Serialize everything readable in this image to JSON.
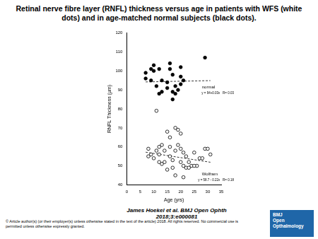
{
  "chart_data": {
    "type": "scatter",
    "title": "Retinal nerve fibre layer (RNFL) thickness versus age in patients with WFS (white dots) and in age-matched normal subjects (black dots).",
    "x_label": "Age (yrs)",
    "y_label": "RNFL Thickness (µm)",
    "xlim": [
      0,
      35
    ],
    "xticks": [
      0,
      5,
      10,
      15,
      20,
      25,
      30,
      35
    ],
    "ylim": [
      40,
      120
    ],
    "yticks": [
      40,
      50,
      60,
      70,
      80,
      90,
      100,
      110,
      120
    ],
    "grid": false,
    "series": [
      {
        "name": "normal",
        "color": "#000000",
        "marker": "circle",
        "equation": "y = 94+0.03x   R= 0.03",
        "x": [
          7,
          7,
          9,
          10,
          10,
          9,
          11,
          12,
          13,
          13,
          12,
          15,
          15,
          16,
          16,
          17,
          18,
          17,
          17,
          18,
          19,
          20,
          20,
          21,
          20,
          29
        ],
        "values": [
          99,
          96,
          101,
          103,
          100,
          95,
          92,
          101,
          95,
          89,
          88,
          94,
          91,
          104,
          101,
          98,
          92,
          89,
          85,
          88,
          90,
          102,
          97,
          95,
          93,
          107
        ],
        "fit": {
          "x": [
            7,
            31
          ],
          "y": [
            94.2,
            94.9
          ],
          "line_style": "dashed"
        }
      },
      {
        "name": "Wolfram",
        "color": "#ffffff",
        "marker": "circle",
        "equation": "y = 58.7 - 0.22x   R= 0.18",
        "x": [
          11,
          15,
          16,
          18,
          19,
          20,
          13,
          12,
          8,
          9,
          10,
          12,
          13,
          14,
          15,
          16,
          17,
          18,
          19,
          20,
          21,
          22,
          23,
          25,
          26,
          27,
          29,
          30,
          31,
          17,
          18,
          22,
          24,
          23,
          8,
          11,
          12,
          14,
          16,
          20,
          21,
          25,
          21,
          28
        ],
        "values": [
          79,
          68,
          65,
          70,
          69,
          67,
          61,
          56,
          59,
          56,
          54,
          52,
          51,
          52,
          48,
          55,
          53,
          58,
          61,
          59,
          57,
          55,
          52,
          57,
          50,
          54,
          59,
          59,
          56,
          49,
          45,
          49,
          50,
          49,
          55,
          58,
          60,
          58,
          60,
          52,
          50,
          50,
          44,
          54
        ],
        "fit": {
          "x": [
            7,
            31
          ],
          "y": [
            57.2,
            51.9
          ],
          "line_style": "dashed"
        }
      }
    ]
  },
  "citation": "James Hoekel et al. BMJ Open Ophth 2018;3:e000081",
  "copyright": "© Article author(s) (or their employer(s) unless otherwise stated in the text of the article) 2018. All rights reserved. No commercial use is permitted unless otherwise expressly granted.",
  "logo": [
    "BMJ",
    "Open",
    "Opthalmology"
  ]
}
